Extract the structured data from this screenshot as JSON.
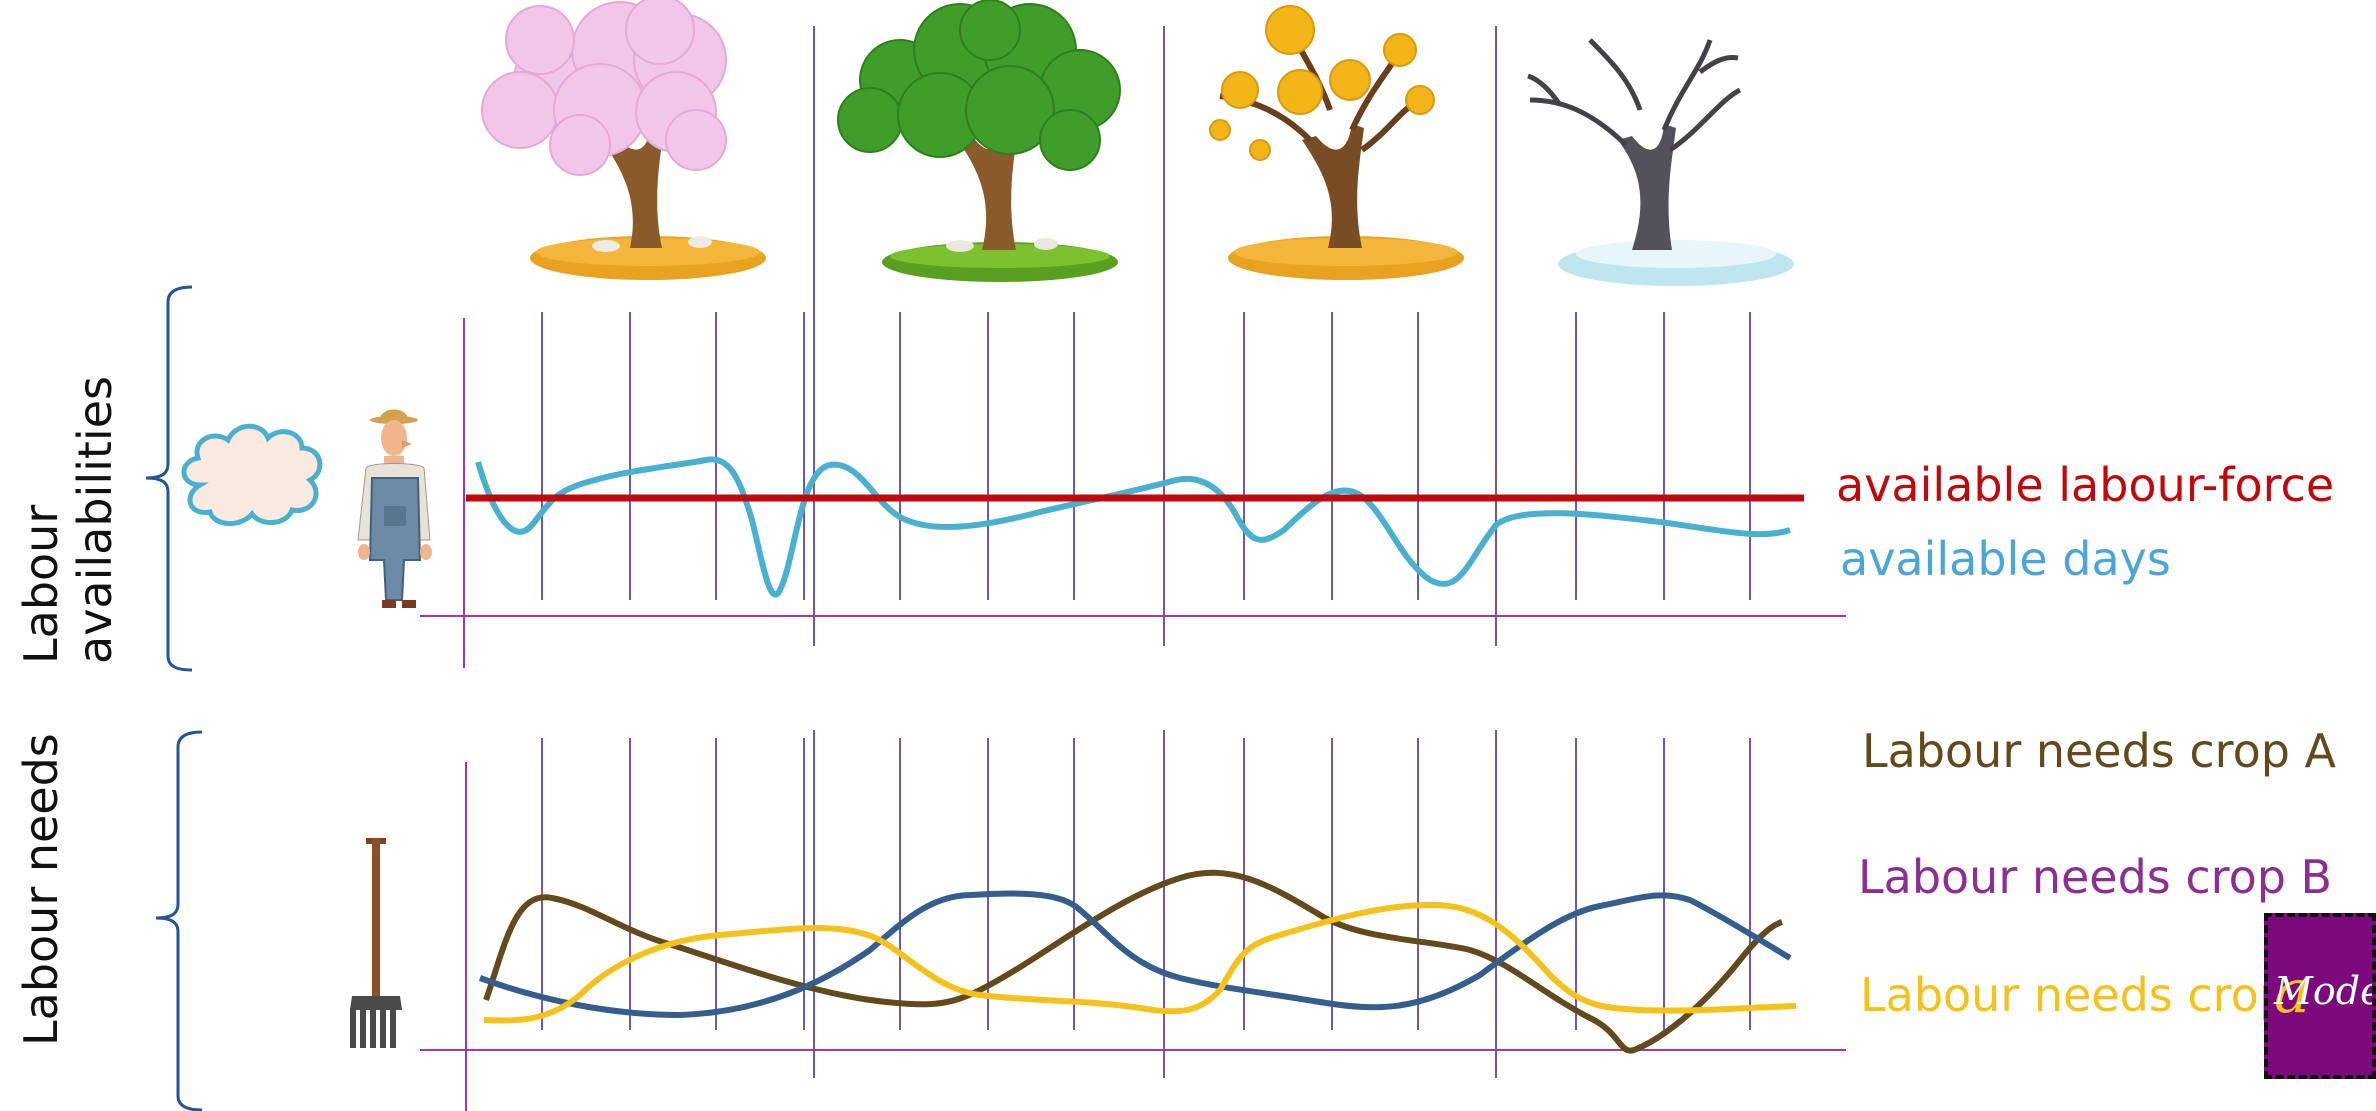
{
  "colors": {
    "grid": "#6a55cc",
    "axis": "#a23aa5",
    "labour_force": "#c0090c",
    "available_days": "#4ab0cf",
    "crop_a": "#634a1c",
    "crop_b": "#345e8d",
    "crop_c": "#f5c21b",
    "bracket": "#24549c",
    "logo_bg": "#7d0a7d"
  },
  "sections": {
    "availabilities_title": "Labour availabilities",
    "needs_title": "Labour needs"
  },
  "legend": {
    "labour_force": "available labour-force",
    "available_days": "available days",
    "crop_a": "Labour needs crop A",
    "crop_b": "Labour needs crop B",
    "crop_c": "Labour needs crop C"
  },
  "seasons": [
    "spring-tree-icon",
    "summer-tree-icon",
    "autumn-tree-icon",
    "winter-tree-icon"
  ],
  "icons": {
    "weather": "cloud-icon",
    "worker": "farmer-icon",
    "tool": "pitchfork-icon"
  },
  "logo": {
    "text": "Modell",
    "accent": "a"
  }
}
